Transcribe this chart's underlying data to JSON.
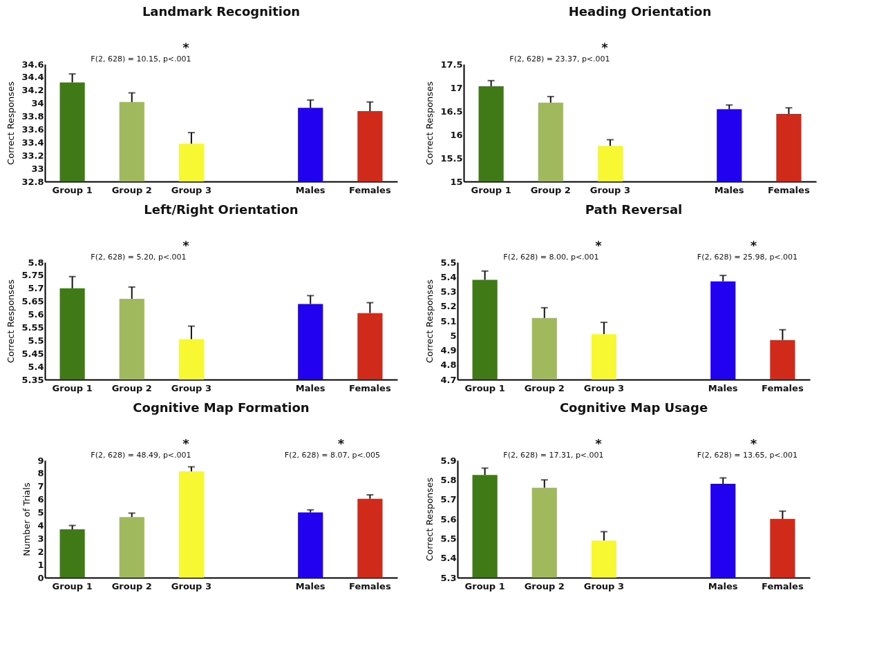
{
  "chart_data": [
    {
      "type": "bar",
      "title": "Landmark Recognition",
      "ylabel": "Correct Responses",
      "categories": [
        "Group 1",
        "Group 2",
        "Group 3",
        null,
        "Males",
        "Females"
      ],
      "values": [
        34.32,
        34.02,
        33.38,
        null,
        33.93,
        33.88
      ],
      "colors": [
        "#3f7a16",
        "#a0b95c",
        "#f8f832",
        null,
        "#2200f0",
        "#cf2a1a"
      ],
      "errors": [
        [
          34.32,
          34.45
        ],
        [
          34.02,
          34.16
        ],
        [
          33.38,
          33.55
        ],
        null,
        [
          33.93,
          34.05
        ],
        [
          33.88,
          34.02
        ]
      ],
      "ylim": [
        32.8,
        34.6
      ],
      "yticks": [
        32.8,
        33,
        33.2,
        33.4,
        33.6,
        33.8,
        34,
        34.2,
        34.4,
        34.6
      ],
      "annotations": [
        "F(2, 628) = 10.15, p<.001",
        "*"
      ]
    },
    {
      "type": "bar",
      "title": "Heading Orientation",
      "ylabel": "Correct Responses",
      "categories": [
        "Group 1",
        "Group 2",
        "Group 3",
        null,
        "Males",
        "Females"
      ],
      "values": [
        17.03,
        16.68,
        15.76,
        null,
        16.54,
        16.44
      ],
      "colors": [
        "#3f7a16",
        "#a0b95c",
        "#f8f832",
        null,
        "#2200f0",
        "#cf2a1a"
      ],
      "errors": [
        [
          17.03,
          17.15
        ],
        [
          16.68,
          16.81
        ],
        [
          15.76,
          15.89
        ],
        null,
        [
          16.54,
          16.63
        ],
        [
          16.44,
          16.57
        ]
      ],
      "ylim": [
        15,
        17.5
      ],
      "yticks": [
        15,
        15.5,
        16,
        16.5,
        17,
        17.5
      ],
      "annotations": [
        "F(2, 628) = 23.37, p<.001",
        "*"
      ]
    },
    {
      "type": "bar",
      "title": "Left/Right Orientation",
      "ylabel": "Correct Responses",
      "categories": [
        "Group 1",
        "Group 2",
        "Group 3",
        null,
        "Males",
        "Females"
      ],
      "values": [
        5.7,
        5.66,
        5.505,
        null,
        5.64,
        5.605
      ],
      "colors": [
        "#3f7a16",
        "#a0b95c",
        "#f8f832",
        null,
        "#2200f0",
        "#cf2a1a"
      ],
      "errors": [
        [
          5.7,
          5.745
        ],
        [
          5.66,
          5.705
        ],
        [
          5.505,
          5.555
        ],
        null,
        [
          5.64,
          5.672
        ],
        [
          5.605,
          5.645
        ]
      ],
      "ylim": [
        5.35,
        5.8
      ],
      "yticks": [
        5.35,
        5.4,
        5.45,
        5.5,
        5.55,
        5.6,
        5.65,
        5.7,
        5.75,
        5.8
      ],
      "annotations": [
        "F(2, 628) = 5.20, p<.001",
        "*"
      ]
    },
    {
      "type": "bar",
      "title": "Path Reversal",
      "ylabel": "Correct Responses",
      "categories": [
        "Group 1",
        "Group 2",
        "Group 3",
        null,
        "Males",
        "Females"
      ],
      "values": [
        5.38,
        5.12,
        5.01,
        null,
        5.37,
        4.97
      ],
      "colors": [
        "#3f7a16",
        "#a0b95c",
        "#f8f832",
        null,
        "#2200f0",
        "#cf2a1a"
      ],
      "errors": [
        [
          5.38,
          5.44
        ],
        [
          5.12,
          5.19
        ],
        [
          5.01,
          5.09
        ],
        null,
        [
          5.37,
          5.41
        ],
        [
          4.97,
          5.04
        ]
      ],
      "ylim": [
        4.7,
        5.5
      ],
      "yticks": [
        4.7,
        4.8,
        4.9,
        5,
        5.1,
        5.2,
        5.3,
        5.4,
        5.5
      ],
      "annotations": [
        "F(2, 628) = 8.00, p<.001",
        "F(2, 628) = 25.98, p<.001",
        "*",
        "*"
      ]
    },
    {
      "type": "bar",
      "title": "Cognitive Map Formation",
      "ylabel": "Number of Trials",
      "categories": [
        "Group 1",
        "Group 2",
        "Group 3",
        null,
        "Males",
        "Females"
      ],
      "values": [
        3.7,
        4.65,
        8.15,
        null,
        5.0,
        6.05
      ],
      "colors": [
        "#3f7a16",
        "#a0b95c",
        "#f8f832",
        null,
        "#2200f0",
        "#cf2a1a"
      ],
      "errors": [
        [
          3.7,
          4.0
        ],
        [
          4.65,
          4.95
        ],
        [
          8.15,
          8.5
        ],
        null,
        [
          5.0,
          5.2
        ],
        [
          6.05,
          6.35
        ]
      ],
      "ylim": [
        0,
        9
      ],
      "yticks": [
        0,
        1,
        2,
        3,
        4,
        5,
        6,
        7,
        8,
        9
      ],
      "annotations": [
        "F(2, 628) = 48.49, p<.001",
        "F(2, 628) = 8.07, p<.005",
        "*",
        "*"
      ]
    },
    {
      "type": "bar",
      "title": "Cognitive Map Usage",
      "ylabel": "Correct Responses",
      "categories": [
        "Group 1",
        "Group 2",
        "Group 3",
        null,
        "Males",
        "Females"
      ],
      "values": [
        5.825,
        5.76,
        5.49,
        null,
        5.78,
        5.6
      ],
      "colors": [
        "#3f7a16",
        "#a0b95c",
        "#f8f832",
        null,
        "#2200f0",
        "#cf2a1a"
      ],
      "errors": [
        [
          5.825,
          5.86
        ],
        [
          5.76,
          5.8
        ],
        [
          5.49,
          5.535
        ],
        null,
        [
          5.78,
          5.81
        ],
        [
          5.6,
          5.64
        ]
      ],
      "ylim": [
        5.3,
        5.9
      ],
      "yticks": [
        5.3,
        5.4,
        5.5,
        5.6,
        5.7,
        5.8,
        5.9
      ],
      "annotations": [
        "F(2, 628) = 17.31, p<.001",
        "F(2, 628) = 13.65, p<.001",
        "*",
        "*"
      ]
    }
  ]
}
